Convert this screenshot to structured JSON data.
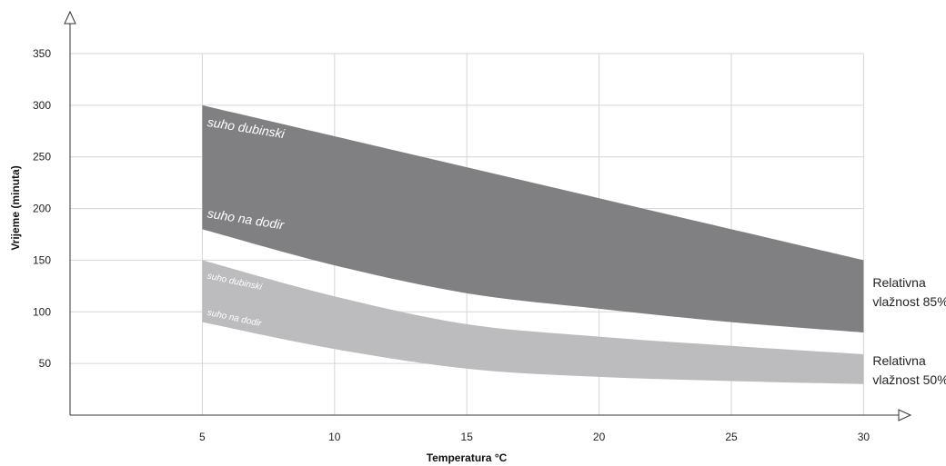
{
  "chart_data": {
    "type": "area",
    "xlabel": "Temperatura °C",
    "ylabel": "Vrijeme (minuta)",
    "xlim": [
      0,
      30
    ],
    "ylim": [
      0,
      350
    ],
    "x_ticks": [
      5,
      10,
      15,
      20,
      25,
      30
    ],
    "y_ticks": [
      50,
      100,
      150,
      200,
      250,
      300,
      350
    ],
    "grid": true,
    "series": [
      {
        "name": "Relativna vlažnost 85%",
        "legend_lines": [
          "Relativna",
          "vlažnost 85%"
        ],
        "color": "#808083",
        "upper_label": "suho dubinski",
        "lower_label": "suho na dodir",
        "x": [
          5,
          10,
          15,
          20,
          25,
          30
        ],
        "upper": [
          300,
          270,
          240,
          210,
          180,
          150
        ],
        "lower": [
          180,
          145,
          118,
          103,
          90,
          80
        ]
      },
      {
        "name": "Relativna vlažnost 50%",
        "legend_lines": [
          "Relativna",
          "vlažnost 50%"
        ],
        "color": "#bcbcbf",
        "upper_label": "suho dubinski",
        "lower_label": "suho na dodir",
        "x": [
          5,
          10,
          15,
          20,
          25,
          30
        ],
        "upper": [
          150,
          115,
          88,
          76,
          67,
          59
        ],
        "lower": [
          90,
          64,
          45,
          37,
          33,
          30
        ]
      }
    ]
  }
}
